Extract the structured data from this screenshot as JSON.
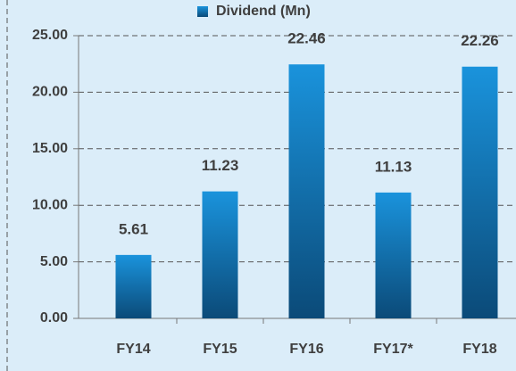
{
  "chart_data": {
    "type": "bar",
    "categories": [
      "FY14",
      "FY15",
      "FY16",
      "FY17*",
      "FY18"
    ],
    "series": [
      {
        "name": "Dividend (Mn)",
        "color": "#1589d4",
        "values": [
          5.61,
          11.23,
          22.46,
          11.13,
          22.26
        ]
      }
    ],
    "ylim": [
      0,
      25
    ],
    "yticks": [
      {
        "value": 0,
        "label": "0.00"
      },
      {
        "value": 5,
        "label": "5.00"
      },
      {
        "value": 10,
        "label": "10.00"
      },
      {
        "value": 15,
        "label": "15.00"
      },
      {
        "value": 20,
        "label": "20.00"
      },
      {
        "value": 25,
        "label": "25.00"
      }
    ],
    "grid": true,
    "legend": "top"
  }
}
